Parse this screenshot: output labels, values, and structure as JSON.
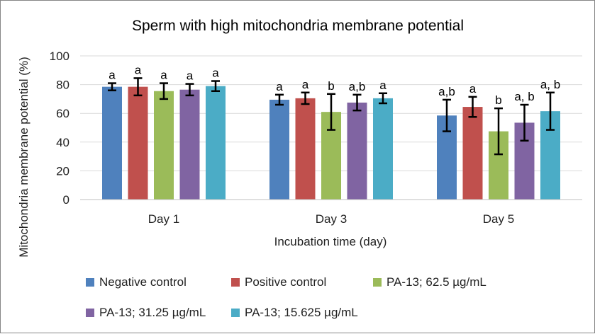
{
  "chart_data": {
    "type": "bar",
    "title": "Sperm with high mitochondria membrane potential",
    "xlabel": "Incubation time (day)",
    "ylabel": "Mitochondria membrane potential (%)",
    "ylim": [
      0,
      100
    ],
    "yticks": [
      "0",
      "20",
      "40",
      "60",
      "80",
      "100"
    ],
    "categories": [
      "Day 1",
      "Day 3",
      "Day 5"
    ],
    "grid": true,
    "legend_position": "bottom",
    "series": [
      {
        "name": "Negative control",
        "color": "#4F81BD",
        "values": [
          78.5,
          69.5,
          58.5
        ],
        "errors": [
          2.5,
          3.5,
          11
        ],
        "labels": [
          "a",
          "a",
          "a,b"
        ]
      },
      {
        "name": "Positive control",
        "color": "#C0504D",
        "values": [
          78.5,
          70.5,
          64.5
        ],
        "errors": [
          6,
          4,
          7
        ],
        "labels": [
          "a",
          "a",
          "a"
        ]
      },
      {
        "name": "PA-13; 62.5 µg/mL",
        "color": "#9BBB59",
        "values": [
          75.5,
          61,
          47.5
        ],
        "errors": [
          5.5,
          12.5,
          16
        ],
        "labels": [
          "a",
          "b",
          "b"
        ]
      },
      {
        "name": "PA-13; 31.25 µg/mL",
        "color": "#8064A2",
        "values": [
          76.5,
          67.5,
          53.5
        ],
        "errors": [
          4,
          5.5,
          12.5
        ],
        "labels": [
          "a",
          "a,b",
          "a, b"
        ]
      },
      {
        "name": "PA-13; 15.625 µg/mL",
        "color": "#4BACC6",
        "values": [
          79,
          70.5,
          61.5
        ],
        "errors": [
          3.5,
          3.5,
          13
        ],
        "labels": [
          "a",
          "a",
          "a, b"
        ]
      }
    ]
  }
}
